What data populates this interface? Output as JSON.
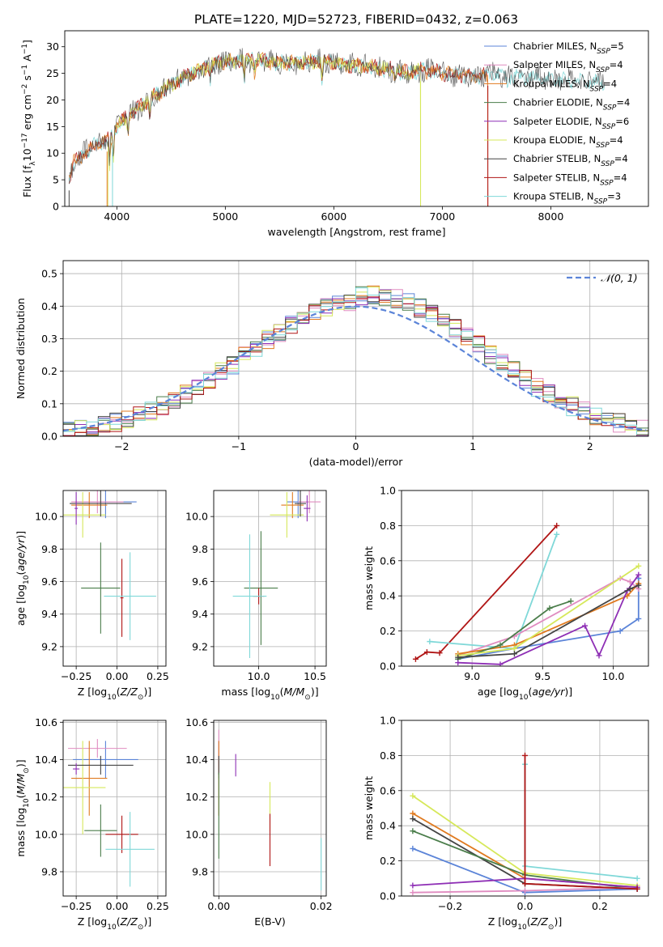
{
  "title": "PLATE=1220, MJD=52723, FIBERID=0432, z=0.063",
  "colors": {
    "Chabrier MILES": "#5b84d8",
    "Salpeter MILES": "#e08cc0",
    "Kroupa MILES": "#e07a1f",
    "Chabrier ELODIE": "#4a7d4a",
    "Salpeter ELODIE": "#8e2fb5",
    "Kroupa ELODIE": "#d6e85a",
    "Chabrier STELIB": "#444444",
    "Salpeter STELIB": "#b01515",
    "Kroupa STELIB": "#7fd8d8"
  },
  "chart_data": [
    {
      "id": "spectrum",
      "type": "line",
      "xlabel": "wavelength [Angstrom, rest frame]",
      "ylabel": "Flux [f_λ10^-17 erg cm^-2 s^-1 A^-1]",
      "xlim": [
        3520,
        8900
      ],
      "ylim": [
        0,
        33
      ],
      "xticks": [
        4000,
        5000,
        6000,
        7000,
        8000
      ],
      "yticks": [
        0,
        5,
        10,
        15,
        20,
        25,
        30
      ],
      "legend_position": "top-right",
      "legend": [
        "Chabrier MILES, N_SSP=5",
        "Salpeter MILES, N_SSP=4",
        "Kroupa MILES, N_SSP=4",
        "Chabrier ELODIE, N_SSP=4",
        "Salpeter ELODIE, N_SSP=6",
        "Kroupa ELODIE, N_SSP=4",
        "Chabrier STELIB, N_SSP=4",
        "Salpeter STELIB, N_SSP=4",
        "Kroupa STELIB, N_SSP=3"
      ],
      "continuum": [
        [
          3560,
          5
        ],
        [
          3600,
          8
        ],
        [
          3700,
          10
        ],
        [
          3800,
          11.5
        ],
        [
          3900,
          12
        ],
        [
          4000,
          15
        ],
        [
          4100,
          17
        ],
        [
          4200,
          18.5
        ],
        [
          4300,
          20
        ],
        [
          4400,
          21.5
        ],
        [
          4500,
          23
        ],
        [
          4600,
          24.2
        ],
        [
          4700,
          25
        ],
        [
          4800,
          26
        ],
        [
          4900,
          26.8
        ],
        [
          5000,
          27.2
        ],
        [
          5100,
          27.3
        ],
        [
          5200,
          27.5
        ],
        [
          5300,
          27.3
        ],
        [
          5400,
          27.2
        ],
        [
          5500,
          27
        ],
        [
          5600,
          27
        ],
        [
          5700,
          27.1
        ],
        [
          5800,
          27.2
        ],
        [
          5900,
          27.3
        ],
        [
          6000,
          27
        ],
        [
          6100,
          26.6
        ],
        [
          6200,
          26.5
        ],
        [
          6300,
          26.2
        ],
        [
          6400,
          26
        ],
        [
          6500,
          25.8
        ],
        [
          6600,
          25.3
        ],
        [
          6700,
          25.2
        ],
        [
          6800,
          25.5
        ],
        [
          6900,
          25.5
        ],
        [
          7000,
          25
        ],
        [
          7100,
          24.8
        ],
        [
          7200,
          24.8
        ],
        [
          7300,
          24.5
        ],
        [
          7400,
          24.6
        ],
        [
          7500,
          25
        ],
        [
          7600,
          24.2
        ],
        [
          7700,
          24.3
        ],
        [
          7800,
          24.2
        ],
        [
          7900,
          24
        ],
        [
          8000,
          24
        ],
        [
          8100,
          23.8
        ],
        [
          8200,
          23.6
        ],
        [
          8300,
          23.5
        ],
        [
          8400,
          23.3
        ],
        [
          8500,
          23.2
        ]
      ],
      "series": [
        {
          "name": "Kroupa STELIB",
          "start": 3560,
          "end": 8500
        },
        {
          "name": "Salpeter STELIB",
          "start": 3560,
          "end": 7420
        },
        {
          "name": "Kroupa MILES",
          "start": 3560,
          "end": 7420
        },
        {
          "name": "Kroupa ELODIE",
          "start": 3920,
          "end": 6800
        },
        {
          "name": "Chabrier STELIB",
          "start": 3560,
          "end": 8500
        }
      ]
    },
    {
      "id": "residuals",
      "type": "histogram",
      "xlabel": "(data-model)/error",
      "ylabel": "Normed distribution",
      "xlim": [
        -2.5,
        2.5
      ],
      "ylim": [
        0,
        0.54
      ],
      "xticks": [
        -2,
        -1,
        0,
        1,
        2
      ],
      "yticks": [
        0.0,
        0.1,
        0.2,
        0.3,
        0.4,
        0.5
      ],
      "grid": true,
      "legend_position": "top-right",
      "legend": [
        "𝒩(0, 1)"
      ],
      "bin_width": 0.1
    },
    {
      "id": "age-vs-Z",
      "type": "scatter",
      "xlabel": "Z [log10(Z/Z☉)]",
      "ylabel": "age  [log10(age/yr)]",
      "xlim": [
        -0.33,
        0.3
      ],
      "ylim": [
        9.08,
        10.16
      ],
      "xticks": [
        -0.25,
        0.0,
        0.25
      ],
      "yticks": [
        9.2,
        9.4,
        9.6,
        9.8,
        10.0
      ],
      "grid": true,
      "points": [
        {
          "name": "Chabrier MILES",
          "x": -0.07,
          "xerr": 0.19,
          "y": 10.09,
          "yerr": 0.1
        },
        {
          "name": "Salpeter MILES",
          "x": -0.12,
          "xerr": 0.16,
          "y": 10.09,
          "yerr": 0.07
        },
        {
          "name": "Kroupa MILES",
          "x": -0.17,
          "xerr": 0.11,
          "y": 10.07,
          "yerr": 0.08
        },
        {
          "name": "Kroupa ELODIE",
          "x": -0.21,
          "xerr": 0.14,
          "y": 10.01,
          "yerr": 0.14
        },
        {
          "name": "Chabrier STELIB",
          "x": -0.1,
          "xerr": 0.19,
          "y": 10.08,
          "yerr": 0.08
        },
        {
          "name": "Salpeter ELODIE",
          "x": -0.25,
          "xerr": 0.01,
          "y": 10.05,
          "yerr": 0.1
        },
        {
          "name": "Chabrier ELODIE",
          "x": -0.1,
          "xerr": 0.12,
          "y": 9.56,
          "yerr": 0.28
        },
        {
          "name": "Salpeter STELIB",
          "x": 0.03,
          "xerr": 0.01,
          "y": 9.5,
          "yerr": 0.24
        },
        {
          "name": "Kroupa STELIB",
          "x": 0.08,
          "xerr": 0.16,
          "y": 9.51,
          "yerr": 0.27
        }
      ]
    },
    {
      "id": "age-vs-mass",
      "type": "scatter",
      "xlabel": "mass [log10(M/M☉)]",
      "ylabel": "",
      "xlim": [
        9.6,
        10.6
      ],
      "ylim": [
        9.08,
        10.16
      ],
      "xticks": [
        10.0,
        10.5
      ],
      "yticks": [
        9.2,
        9.4,
        9.6,
        9.8,
        10.0
      ],
      "grid": true,
      "points": [
        {
          "name": "Chabrier MILES",
          "x": 10.35,
          "xerr": 0.1,
          "y": 10.09,
          "yerr": 0.1
        },
        {
          "name": "Salpeter MILES",
          "x": 10.45,
          "xerr": 0.1,
          "y": 10.09,
          "yerr": 0.07
        },
        {
          "name": "Kroupa MILES",
          "x": 10.3,
          "xerr": 0.1,
          "y": 10.07,
          "yerr": 0.08
        },
        {
          "name": "Kroupa ELODIE",
          "x": 10.25,
          "xerr": 0.15,
          "y": 10.01,
          "yerr": 0.14
        },
        {
          "name": "Chabrier STELIB",
          "x": 10.37,
          "xerr": 0.05,
          "y": 10.08,
          "yerr": 0.08
        },
        {
          "name": "Salpeter ELODIE",
          "x": 10.43,
          "xerr": 0.03,
          "y": 10.05,
          "yerr": 0.08
        },
        {
          "name": "Chabrier ELODIE",
          "x": 10.02,
          "xerr": 0.15,
          "y": 9.56,
          "yerr": 0.35
        },
        {
          "name": "Salpeter STELIB",
          "x": 10.0,
          "xerr": 0.05,
          "y": 9.51,
          "yerr": 0.05
        },
        {
          "name": "Kroupa STELIB",
          "x": 9.92,
          "xerr": 0.15,
          "y": 9.51,
          "yerr": 0.38
        }
      ]
    },
    {
      "id": "weight-vs-age",
      "type": "line",
      "xlabel": "age  [log10(age/yr)]",
      "ylabel": "mass weight",
      "xlim": [
        8.5,
        10.25
      ],
      "ylim": [
        0,
        1.0
      ],
      "xticks": [
        9.0,
        9.5,
        10.0
      ],
      "yticks": [
        0.0,
        0.2,
        0.4,
        0.6,
        0.8,
        1.0
      ],
      "grid": true,
      "series": [
        {
          "name": "Salpeter STELIB",
          "points": [
            [
              8.6,
              0.04
            ],
            [
              8.68,
              0.08
            ],
            [
              8.77,
              0.075
            ],
            [
              9.6,
              0.8
            ]
          ]
        },
        {
          "name": "Kroupa STELIB",
          "points": [
            [
              8.7,
              0.14
            ],
            [
              9.3,
              0.1
            ],
            [
              9.6,
              0.75
            ]
          ]
        },
        {
          "name": "Chabrier MILES",
          "points": [
            [
              8.9,
              0.04
            ],
            [
              9.3,
              0.1
            ],
            [
              10.05,
              0.2
            ],
            [
              10.18,
              0.27
            ],
            [
              10.18,
              0.5
            ]
          ]
        },
        {
          "name": "Salpeter MILES",
          "points": [
            [
              8.9,
              0.06
            ],
            [
              9.3,
              0.17
            ],
            [
              10.05,
              0.5
            ],
            [
              10.12,
              0.48
            ],
            [
              10.18,
              0.44
            ]
          ]
        },
        {
          "name": "Kroupa MILES",
          "points": [
            [
              8.9,
              0.07
            ],
            [
              9.3,
              0.12
            ],
            [
              10.1,
              0.4
            ],
            [
              10.18,
              0.47
            ]
          ]
        },
        {
          "name": "Chabrier ELODIE",
          "points": [
            [
              8.9,
              0.04
            ],
            [
              9.2,
              0.12
            ],
            [
              9.55,
              0.33
            ],
            [
              9.7,
              0.37
            ]
          ]
        },
        {
          "name": "Salpeter ELODIE",
          "points": [
            [
              8.9,
              0.02
            ],
            [
              9.2,
              0.01
            ],
            [
              9.8,
              0.23
            ],
            [
              9.9,
              0.06
            ],
            [
              10.1,
              0.43
            ],
            [
              10.18,
              0.52
            ]
          ]
        },
        {
          "name": "Kroupa ELODIE",
          "points": [
            [
              8.9,
              0.06
            ],
            [
              9.3,
              0.1
            ],
            [
              10.18,
              0.57
            ]
          ]
        },
        {
          "name": "Chabrier STELIB",
          "points": [
            [
              8.9,
              0.05
            ],
            [
              9.3,
              0.07
            ],
            [
              10.12,
              0.44
            ],
            [
              10.18,
              0.46
            ]
          ]
        }
      ]
    },
    {
      "id": "mass-vs-Z",
      "type": "scatter",
      "xlabel": "Z [log10(Z/Z☉)]",
      "ylabel": "mass [log10(M/M☉)]",
      "xlim": [
        -0.33,
        0.3
      ],
      "ylim": [
        9.67,
        10.61
      ],
      "xticks": [
        -0.25,
        0.0,
        0.25
      ],
      "yticks": [
        9.8,
        10.0,
        10.2,
        10.4,
        10.6
      ],
      "grid": true,
      "points": [
        {
          "name": "Chabrier MILES",
          "x": -0.07,
          "xerr": 0.2,
          "y": 10.4,
          "yerr": 0.1
        },
        {
          "name": "Salpeter MILES",
          "x": -0.12,
          "xerr": 0.18,
          "y": 10.46,
          "yerr": 0.05
        },
        {
          "name": "Kroupa MILES",
          "x": -0.17,
          "xerr": 0.11,
          "y": 10.3,
          "yerr": 0.2
        },
        {
          "name": "Kroupa ELODIE",
          "x": -0.21,
          "xerr": 0.14,
          "y": 10.25,
          "yerr": 0.25
        },
        {
          "name": "Chabrier STELIB",
          "x": -0.1,
          "xerr": 0.2,
          "y": 10.37,
          "yerr": 0.05
        },
        {
          "name": "Salpeter ELODIE",
          "x": -0.25,
          "xerr": 0.02,
          "y": 10.35,
          "yerr": 0.03
        },
        {
          "name": "Chabrier ELODIE",
          "x": -0.1,
          "xerr": 0.1,
          "y": 10.02,
          "yerr": 0.14
        },
        {
          "name": "Salpeter STELIB",
          "x": 0.03,
          "xerr": 0.1,
          "y": 10.0,
          "yerr": 0.1
        },
        {
          "name": "Kroupa STELIB",
          "x": 0.08,
          "xerr": 0.15,
          "y": 9.92,
          "yerr": 0.2
        }
      ]
    },
    {
      "id": "mass-vs-EBV",
      "type": "scatter",
      "xlabel": "E(B-V)",
      "ylabel": "",
      "xlim": [
        -0.001,
        0.021
      ],
      "ylim": [
        9.67,
        10.61
      ],
      "xticks": [
        0.0,
        0.02
      ],
      "yticks": [
        9.8,
        10.0,
        10.2,
        10.4,
        10.6
      ],
      "grid": true,
      "points": [
        {
          "name": "Chabrier MILES",
          "x": 0.0,
          "y": 10.4,
          "yerr": 0.1
        },
        {
          "name": "Salpeter MILES",
          "x": 0.0,
          "y": 10.46,
          "yerr": 0.1
        },
        {
          "name": "Kroupa MILES",
          "x": 0.0,
          "y": 10.3,
          "yerr": 0.2
        },
        {
          "name": "Chabrier STELIB",
          "x": 0.0,
          "y": 10.37,
          "yerr": 0.05
        },
        {
          "name": "Chabrier ELODIE",
          "x": 0.0,
          "y": 10.1,
          "yerr": 0.23
        },
        {
          "name": "Salpeter ELODIE",
          "x": 0.0033,
          "y": 10.37,
          "yerr": 0.06
        },
        {
          "name": "Kroupa ELODIE",
          "x": 0.01,
          "y": 10.15,
          "yerr": 0.13
        },
        {
          "name": "Salpeter STELIB",
          "x": 0.01,
          "y": 9.97,
          "yerr": 0.14
        },
        {
          "name": "Kroupa STELIB",
          "x": 0.02,
          "y": 9.84,
          "yerr": 0.14
        }
      ]
    },
    {
      "id": "weight-vs-Z",
      "type": "line",
      "xlabel": "Z [log10(Z/Z☉)]",
      "ylabel": "mass weight",
      "xlim": [
        -0.33,
        0.33
      ],
      "ylim": [
        0,
        1.0
      ],
      "xticks": [
        -0.2,
        0.0,
        0.2
      ],
      "yticks": [
        0.0,
        0.2,
        0.4,
        0.6,
        0.8,
        1.0
      ],
      "grid": true,
      "series": [
        {
          "name": "Kroupa ELODIE",
          "points": [
            [
              -0.3,
              0.57
            ],
            [
              0.0,
              0.13
            ],
            [
              0.3,
              0.06
            ]
          ]
        },
        {
          "name": "Kroupa MILES",
          "points": [
            [
              -0.3,
              0.47
            ],
            [
              0.0,
              0.1
            ],
            [
              0.3,
              0.05
            ]
          ]
        },
        {
          "name": "Chabrier STELIB",
          "points": [
            [
              -0.3,
              0.44
            ],
            [
              0.0,
              0.07
            ],
            [
              0.3,
              0.04
            ]
          ]
        },
        {
          "name": "Chabrier ELODIE",
          "points": [
            [
              -0.3,
              0.37
            ],
            [
              0.0,
              0.12
            ],
            [
              0.3,
              0.04
            ]
          ]
        },
        {
          "name": "Chabrier MILES",
          "points": [
            [
              -0.3,
              0.27
            ],
            [
              0.0,
              0.02
            ],
            [
              0.3,
              0.04
            ]
          ]
        },
        {
          "name": "Salpeter MILES",
          "points": [
            [
              -0.3,
              0.02
            ],
            [
              0.0,
              0.03
            ],
            [
              0.3,
              0.05
            ]
          ]
        },
        {
          "name": "Salpeter ELODIE",
          "points": [
            [
              -0.3,
              0.06
            ],
            [
              0.0,
              0.1
            ],
            [
              0.3,
              0.05
            ]
          ]
        },
        {
          "name": "Kroupa STELIB",
          "points": [
            [
              0.0,
              0.75
            ],
            [
              0.0,
              0.17
            ],
            [
              0.3,
              0.1
            ]
          ]
        },
        {
          "name": "Salpeter STELIB",
          "points": [
            [
              0.0,
              0.8
            ],
            [
              0.0,
              0.07
            ],
            [
              0.3,
              0.04
            ]
          ]
        }
      ]
    }
  ]
}
